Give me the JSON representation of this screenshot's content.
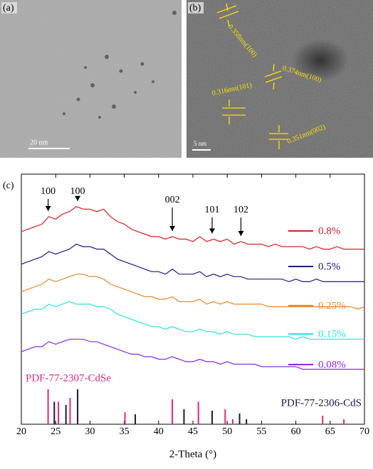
{
  "panels": {
    "a": {
      "label": "(a)",
      "scale_bar": "20 nm"
    },
    "b": {
      "label": "(b)",
      "scale_bar": "5 nm",
      "annotations": [
        "0.358nm(100)",
        "0.374nm(100)",
        "0.316nm(101)",
        "0.351nm(002)"
      ]
    }
  },
  "chart_data": {
    "type": "line",
    "panel_label": "(c)",
    "xlabel": "2-Theta (°)",
    "xlim": [
      20,
      70
    ],
    "xticks": [
      20,
      25,
      30,
      35,
      40,
      45,
      50,
      55,
      60,
      65,
      70
    ],
    "ylim": [
      0,
      100
    ],
    "x": [
      20,
      21,
      22,
      23,
      24,
      25,
      26,
      27,
      28,
      29,
      30,
      31,
      32,
      33,
      34,
      35,
      36,
      37,
      38,
      39,
      40,
      41,
      42,
      43,
      44,
      45,
      46,
      47,
      48,
      49,
      50,
      51,
      52,
      53,
      54,
      55,
      56,
      57,
      58,
      59,
      60,
      61,
      62,
      63,
      64,
      65,
      66,
      67,
      68,
      69,
      70
    ],
    "series": [
      {
        "name": "0.8%",
        "color": "#d62020",
        "values": [
          77,
          78,
          79,
          80,
          83,
          82,
          84,
          85,
          87,
          86,
          86,
          85,
          86,
          83,
          81,
          80,
          78,
          77,
          76,
          75,
          75,
          74,
          75,
          74,
          74,
          73,
          75,
          73,
          74,
          73,
          74,
          72,
          73,
          72,
          72,
          72,
          71,
          72,
          71,
          71,
          71,
          71,
          70,
          71,
          70,
          70,
          71,
          70,
          70,
          70,
          70
        ]
      },
      {
        "name": "0.5%",
        "color": "#1c1c8c",
        "values": [
          64,
          65,
          66,
          67,
          69,
          68,
          69,
          70,
          72,
          71,
          71,
          70,
          70,
          68,
          66,
          65,
          64,
          63,
          62,
          61,
          61,
          60,
          62,
          60,
          60,
          60,
          61,
          59,
          60,
          59,
          60,
          59,
          59,
          58,
          58,
          58,
          58,
          58,
          58,
          57,
          58,
          57,
          57,
          58,
          57,
          57,
          57,
          57,
          57,
          57,
          57
        ]
      },
      {
        "name": "0.25%",
        "color": "#e8892a",
        "values": [
          53,
          54,
          55,
          56,
          58,
          57,
          58,
          59,
          60,
          60,
          59,
          59,
          58,
          56,
          55,
          54,
          53,
          52,
          51,
          51,
          50,
          50,
          51,
          49,
          49,
          49,
          50,
          48,
          49,
          48,
          49,
          48,
          48,
          48,
          48,
          48,
          47,
          47,
          47,
          47,
          47,
          47,
          47,
          47,
          47,
          47,
          47,
          47,
          47,
          46,
          47
        ]
      },
      {
        "name": "0.15%",
        "color": "#2ee0e0",
        "values": [
          44,
          45,
          46,
          46,
          48,
          47,
          48,
          49,
          48,
          48,
          48,
          47,
          47,
          46,
          44,
          43,
          42,
          41,
          40,
          39,
          39,
          38,
          39,
          38,
          37,
          37,
          38,
          37,
          37,
          36,
          37,
          36,
          36,
          36,
          35,
          35,
          35,
          35,
          35,
          35,
          34,
          35,
          34,
          34,
          34,
          34,
          34,
          34,
          34,
          34,
          34
        ]
      },
      {
        "name": "0.08%",
        "color": "#8a2be2",
        "values": [
          29,
          30,
          31,
          31,
          33,
          32,
          33,
          34,
          34,
          34,
          33,
          33,
          32,
          31,
          30,
          29,
          28,
          28,
          27,
          27,
          26,
          26,
          27,
          26,
          25,
          25,
          26,
          25,
          25,
          24,
          25,
          24,
          24,
          24,
          24,
          23,
          23,
          23,
          23,
          23,
          23,
          22,
          22,
          22,
          22,
          22,
          22,
          22,
          22,
          22,
          22
        ]
      }
    ],
    "annotations": [
      {
        "text": "100",
        "x": 23.9
      },
      {
        "text": "100",
        "x": 28.2
      },
      {
        "text": "002",
        "x": 42.0
      },
      {
        "text": "101",
        "x": 47.8
      },
      {
        "text": "102",
        "x": 52.0
      }
    ],
    "references": [
      {
        "name": "PDF-77-2307-CdSe",
        "color": "#e0287d",
        "positions": [
          23.9,
          25.4,
          27.1,
          35.1,
          42.0,
          45.8,
          49.7,
          50.8,
          63.9,
          67.0
        ],
        "heights": [
          14,
          9,
          10.5,
          4.8,
          10,
          9,
          6,
          2,
          3.4,
          2
        ]
      },
      {
        "name": "PDF-77-2306-CdS",
        "color": "#1a1a40",
        "positions": [
          24.8,
          26.5,
          28.2,
          36.6,
          43.7,
          47.8,
          51.8,
          52.8
        ],
        "heights": [
          9,
          7.7,
          14,
          4,
          6,
          5.4,
          4.3,
          2
        ]
      }
    ]
  }
}
